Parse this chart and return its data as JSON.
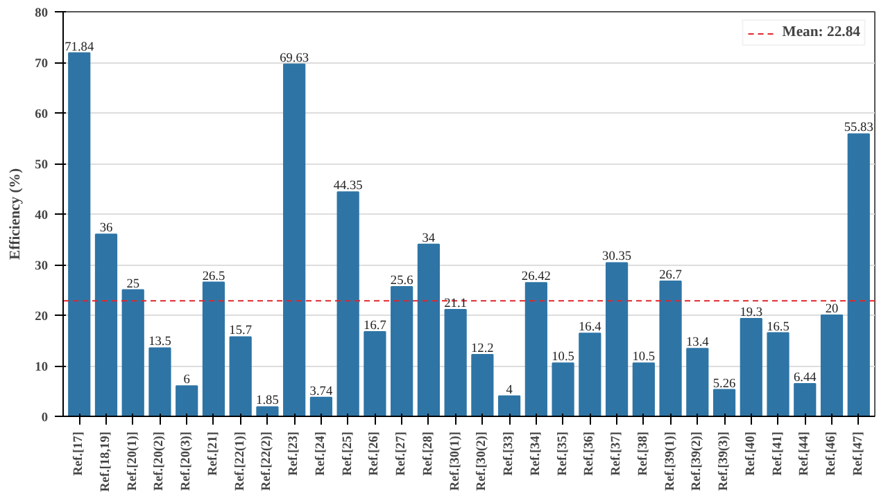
{
  "chart_data": {
    "type": "bar",
    "ylabel": "Efficiency (%)",
    "categories": [
      "Ref.[17]",
      "Ref.[18,19]",
      "Ref.[20(1)]",
      "Ref.[20(2)]",
      "Ref.[20(3)]",
      "Ref.[21]",
      "Ref.[22(1)]",
      "Ref.[22(2)]",
      "Ref.[23]",
      "Ref.[24]",
      "Ref.[25]",
      "Ref.[26]",
      "Ref.[27]",
      "Ref.[28]",
      "Ref.[30(1)]",
      "Ref.[30(2)]",
      "Ref.[33]",
      "Ref.[34]",
      "Ref.[35]",
      "Ref.[36]",
      "Ref.[37]",
      "Ref.[38]",
      "Ref.[39(1)]",
      "Ref.[39(2)]",
      "Ref.[39(3)]",
      "Ref.[40]",
      "Ref.[41]",
      "Ref.[44]",
      "Ref.[46]",
      "Ref.[47]"
    ],
    "values": [
      71.84,
      36,
      25,
      13.5,
      6,
      26.5,
      15.7,
      1.85,
      69.63,
      3.74,
      44.35,
      16.7,
      25.6,
      34,
      21.1,
      12.2,
      4,
      26.42,
      10.5,
      16.4,
      30.35,
      10.5,
      26.7,
      13.4,
      5.26,
      19.3,
      16.5,
      6.44,
      20,
      55.83
    ],
    "color": "#2e75a6",
    "data_labels": true,
    "ylim": [
      0,
      80
    ],
    "yticks": [
      0,
      10,
      20,
      30,
      40,
      50,
      60,
      70,
      80
    ],
    "grid": "y",
    "legend": "top right",
    "ref_lines": [
      {
        "axis": "y",
        "value": 22.84,
        "label": "Mean: 22.84",
        "color": "#e0262b",
        "line_style": "dashed"
      }
    ]
  }
}
